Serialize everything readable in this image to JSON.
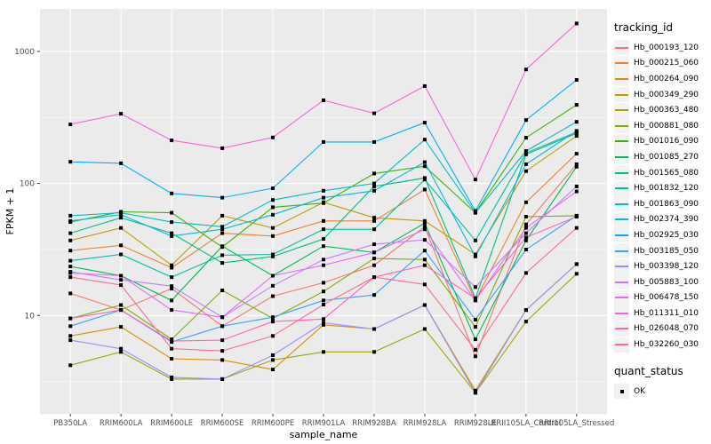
{
  "colors": {
    "panel_bg": "#EBEBEB",
    "grid_major": "#FFFFFF",
    "grid_minor": "#FFFFFF",
    "tick_text": "#4D4D4D",
    "axis_title_text": "#000000",
    "point_color": "#000000"
  },
  "chart_data": {
    "type": "line",
    "title": "",
    "xlabel": "sample_name",
    "ylabel": "FPKM + 1",
    "yscale": "log10",
    "ylim": [
      1.8,
      2100
    ],
    "yticks": [
      10,
      100,
      1000
    ],
    "grid": true,
    "legend_title": "tracking_id",
    "legend_position": "right",
    "point_shape": "filled-square",
    "quant_legend": {
      "title": "quant_status",
      "items": [
        "OK"
      ]
    },
    "categories": [
      "PB350LA",
      "RRIM600LA",
      "RRIM600LE",
      "RRIM600SE",
      "RRIM600PE",
      "RRIM901LA",
      "RRIM928BA",
      "RRIM928LA",
      "RRIM928LE",
      "RRII105LA_Control",
      "RRII105LA_Stressed"
    ],
    "series": [
      {
        "name": "Hb_000193_120",
        "color": "#F8766D",
        "values": [
          14.7,
          11,
          16,
          8.3,
          14,
          17.7,
          24,
          47,
          4.9,
          49,
          140
        ]
      },
      {
        "name": "Hb_000215_060",
        "color": "#EA8331",
        "values": [
          31,
          34,
          23,
          42,
          40,
          52,
          52,
          90,
          13,
          72,
          168
        ]
      },
      {
        "name": "Hb_000264_090",
        "color": "#D89000",
        "values": [
          7.0,
          8.2,
          4.7,
          4.6,
          3.9,
          8.5,
          7.9,
          12,
          2.7,
          11,
          24.5
        ]
      },
      {
        "name": "Hb_000349_290",
        "color": "#C09B00",
        "values": [
          37,
          46,
          24,
          57,
          46,
          72,
          55,
          52,
          29,
          124,
          229
        ]
      },
      {
        "name": "Hb_000363_480",
        "color": "#A3A500",
        "values": [
          4.2,
          5.3,
          3.3,
          3.3,
          4.6,
          5.3,
          5.3,
          7.9,
          2.6,
          9.0,
          20.7
        ]
      },
      {
        "name": "Hb_000881_080",
        "color": "#7CAE00",
        "values": [
          9.5,
          12,
          6.6,
          15.5,
          9.5,
          15.2,
          27,
          26.5,
          8.2,
          56,
          57
        ]
      },
      {
        "name": "Hb_001016_090",
        "color": "#39B600",
        "values": [
          51,
          61,
          60,
          33,
          66,
          71,
          119,
          135,
          60,
          222,
          394
        ]
      },
      {
        "name": "Hb_001085_270",
        "color": "#00BB4E",
        "values": [
          23.5,
          20,
          13,
          33.5,
          20,
          33.5,
          30,
          50,
          6.6,
          37,
          134
        ]
      },
      {
        "name": "Hb_001565_080",
        "color": "#00BF7D",
        "values": [
          42,
          55,
          42,
          25,
          28,
          38,
          95,
          110,
          13.5,
          166,
          240
        ]
      },
      {
        "name": "Hb_001832_120",
        "color": "#00C1A3",
        "values": [
          26,
          29,
          19.5,
          28.6,
          29,
          45,
          45,
          107,
          37,
          170,
          245
        ]
      },
      {
        "name": "Hb_001863_090",
        "color": "#00BFC4",
        "values": [
          57,
          60,
          51,
          47,
          75,
          88,
          100,
          215,
          60,
          176,
          293
        ]
      },
      {
        "name": "Hb_002374_390",
        "color": "#00BAE0",
        "values": [
          52,
          58,
          40,
          45,
          58,
          78,
          88,
          145,
          28,
          140,
          250
        ]
      },
      {
        "name": "Hb_002925_030",
        "color": "#00B0F6",
        "values": [
          146,
          142,
          84,
          78,
          92,
          206,
          206,
          289,
          62,
          302,
          608
        ]
      },
      {
        "name": "Hb_003185_050",
        "color": "#35A2FF",
        "values": [
          8.3,
          11,
          6.3,
          8.3,
          9.7,
          13,
          14.3,
          31,
          9.3,
          31.6,
          57
        ]
      },
      {
        "name": "Hb_003398_120",
        "color": "#9590FF",
        "values": [
          6.5,
          5.6,
          3.4,
          3.3,
          5.0,
          8.8,
          7.9,
          12,
          2.6,
          11,
          24.5
        ]
      },
      {
        "name": "Hb_005883_100",
        "color": "#C77CFF",
        "values": [
          21.4,
          18.6,
          16.7,
          9.7,
          16.8,
          26.5,
          34.6,
          37.4,
          16.4,
          42,
          95
        ]
      },
      {
        "name": "Hb_006478_150",
        "color": "#E76BF3",
        "values": [
          21,
          20,
          11,
          9.7,
          20,
          24,
          30,
          45,
          13,
          46,
          87
        ]
      },
      {
        "name": "Hb_011311_010",
        "color": "#FA62DB",
        "values": [
          280,
          337,
          212,
          185,
          223,
          427,
          340,
          547,
          107,
          730,
          1630
        ]
      },
      {
        "name": "Hb_026048_070",
        "color": "#FF62BC",
        "values": [
          9.5,
          11,
          6.4,
          6.5,
          9.0,
          9.4,
          19.5,
          24,
          13.5,
          39,
          56
        ]
      },
      {
        "name": "Hb_032260_030",
        "color": "#FF6A98",
        "values": [
          19.5,
          17,
          5.6,
          5.4,
          7.0,
          12.1,
          19.5,
          17.2,
          5.5,
          21,
          46
        ]
      }
    ]
  }
}
